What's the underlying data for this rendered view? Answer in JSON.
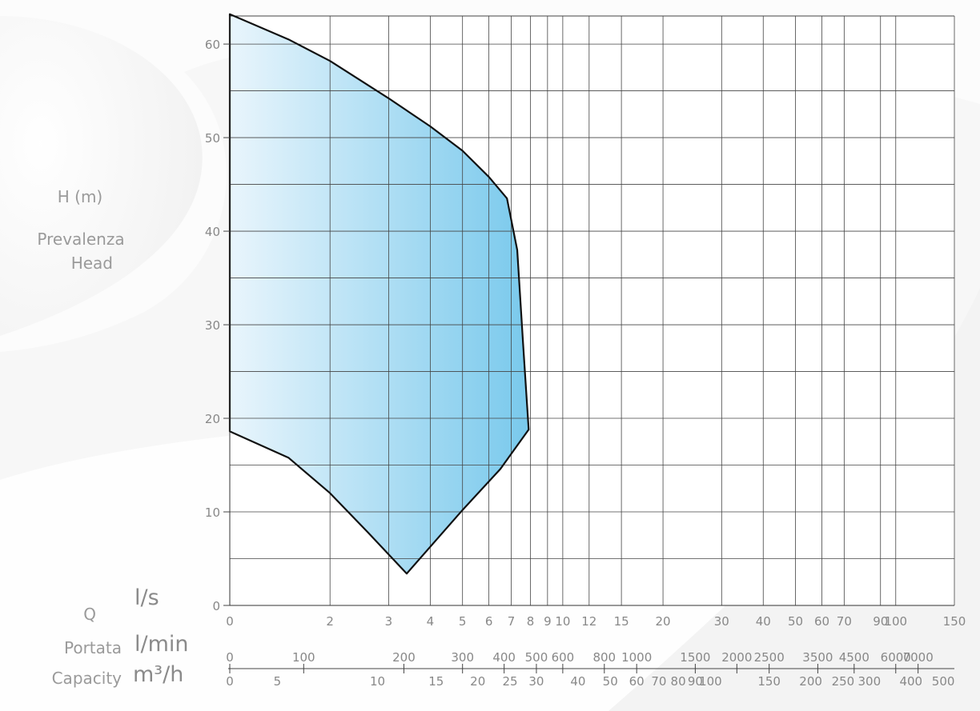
{
  "labels": {
    "y_unit": "H (m)",
    "y_name_it": "Prevalenza",
    "y_name_en": "Head",
    "q_symbol": "Q",
    "q_name_it": "Portata",
    "q_name_en": "Capacity",
    "unit_ls": "l/s",
    "unit_lmin": "l/min",
    "unit_m3h": "m³/h"
  },
  "colors": {
    "fill_light": "#e9f5fc",
    "fill_dark": "#79c9ec",
    "grid": "#444444",
    "curve": "#111111",
    "tick_text": "#888888"
  },
  "chart_data": {
    "type": "area",
    "xscale": "log",
    "x_axis_label": "l/s",
    "xlim": [
      1,
      150
    ],
    "ylim": [
      0,
      63
    ],
    "grid": true,
    "y_ticks": [
      0,
      10,
      20,
      30,
      40,
      50,
      60
    ],
    "ls_ticks": [
      {
        "label": "0",
        "v": 1
      },
      {
        "label": "2",
        "v": 2
      },
      {
        "label": "3",
        "v": 3
      },
      {
        "label": "4",
        "v": 4
      },
      {
        "label": "5",
        "v": 5
      },
      {
        "label": "6",
        "v": 6
      },
      {
        "label": "7",
        "v": 7
      },
      {
        "label": "8",
        "v": 8
      },
      {
        "label": "9",
        "v": 9
      },
      {
        "label": "10",
        "v": 10
      },
      {
        "label": "12",
        "v": 12
      },
      {
        "label": "15",
        "v": 15
      },
      {
        "label": "20",
        "v": 20
      },
      {
        "label": "30",
        "v": 30
      },
      {
        "label": "40",
        "v": 40
      },
      {
        "label": "50",
        "v": 50
      },
      {
        "label": "60",
        "v": 60
      },
      {
        "label": "70",
        "v": 70
      },
      {
        "label": "90",
        "v": 90
      },
      {
        "label": "100",
        "v": 100
      },
      {
        "label": "150",
        "v": 150
      }
    ],
    "lmin_ticks": [
      {
        "label": "0",
        "v": 1
      },
      {
        "label": "100",
        "v": 1.667
      },
      {
        "label": "200",
        "v": 3.333
      },
      {
        "label": "300",
        "v": 5
      },
      {
        "label": "400",
        "v": 6.667
      },
      {
        "label": "500",
        "v": 8.333
      },
      {
        "label": "600",
        "v": 10
      },
      {
        "label": "800",
        "v": 13.33
      },
      {
        "label": "1000",
        "v": 16.67
      },
      {
        "label": "1500",
        "v": 25
      },
      {
        "label": "2000",
        "v": 33.33
      },
      {
        "label": "2500",
        "v": 41.67
      },
      {
        "label": "3500",
        "v": 58.33
      },
      {
        "label": "4500",
        "v": 75
      },
      {
        "label": "6000",
        "v": 100
      },
      {
        "label": "7000",
        "v": 116.7
      }
    ],
    "m3h_ticks": [
      {
        "label": "0",
        "v": 1
      },
      {
        "label": "5",
        "v": 1.389
      },
      {
        "label": "10",
        "v": 2.778
      },
      {
        "label": "15",
        "v": 4.167
      },
      {
        "label": "20",
        "v": 5.556
      },
      {
        "label": "25",
        "v": 6.944
      },
      {
        "label": "30",
        "v": 8.333
      },
      {
        "label": "40",
        "v": 11.11
      },
      {
        "label": "50",
        "v": 13.89
      },
      {
        "label": "60",
        "v": 16.67
      },
      {
        "label": "70",
        "v": 19.44
      },
      {
        "label": "80",
        "v": 22.22
      },
      {
        "label": "90",
        "v": 25
      },
      {
        "label": "100",
        "v": 27.78
      },
      {
        "label": "150",
        "v": 41.67
      },
      {
        "label": "200",
        "v": 55.56
      },
      {
        "label": "250",
        "v": 69.44
      },
      {
        "label": "300",
        "v": 83.33
      },
      {
        "label": "400",
        "v": 111.1
      },
      {
        "label": "500",
        "v": 138.9
      }
    ],
    "series": [
      {
        "upper_curve": [
          [
            1,
            63.2
          ],
          [
            1.5,
            60.5
          ],
          [
            2,
            58.2
          ],
          [
            3,
            54.2
          ],
          [
            4,
            51.2
          ],
          [
            5,
            48.6
          ],
          [
            6,
            45.8
          ],
          [
            6.8,
            43.5
          ],
          [
            7.3,
            38
          ],
          [
            7.6,
            28
          ],
          [
            7.9,
            18.8
          ]
        ],
        "lower_curve": [
          [
            1,
            18.6
          ],
          [
            1.5,
            15.8
          ],
          [
            2,
            12
          ],
          [
            2.6,
            7.8
          ],
          [
            3.4,
            3.4
          ],
          [
            5,
            10.2
          ],
          [
            6.5,
            14.6
          ],
          [
            7.9,
            18.8
          ]
        ]
      }
    ]
  }
}
